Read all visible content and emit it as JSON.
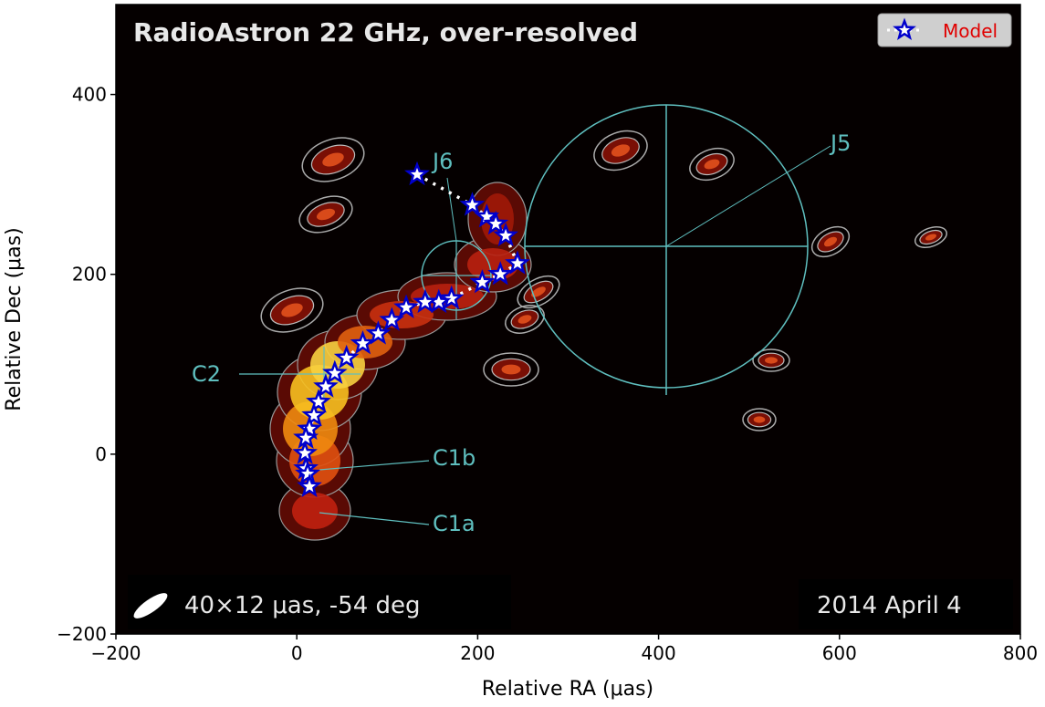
{
  "chart_data": {
    "type": "scatter",
    "title": "RadioAstron 22 GHz, over-resolved",
    "xlabel": "Relative RA (μas)",
    "ylabel": "Relative Dec (μas)",
    "xlim": [
      -200,
      800
    ],
    "ylim": [
      -200,
      500
    ],
    "xticks": [
      -200,
      0,
      200,
      400,
      600,
      800
    ],
    "yticks": [
      -200,
      0,
      200,
      400
    ],
    "xtick_labels": [
      "−200",
      "0",
      "200",
      "400",
      "600",
      "800"
    ],
    "ytick_labels": [
      "−200",
      "0",
      "200",
      "400"
    ],
    "grid": false,
    "legend": {
      "placement": "top-right",
      "entries": [
        "Model"
      ]
    },
    "series": [
      {
        "name": "Model",
        "marker": "star",
        "marker_color": "#0000cc",
        "marker_fill": "#ffffff",
        "line_style": "dotted",
        "line_color": "#ffffff",
        "x": [
          133,
          194,
          210,
          220,
          231,
          244,
          225,
          205,
          171,
          157,
          142,
          121,
          105,
          90,
          73,
          55,
          42,
          32,
          24,
          19,
          14,
          10,
          9,
          10,
          12,
          14
        ],
        "y": [
          311,
          277,
          264,
          256,
          243,
          212,
          200,
          191,
          173,
          169,
          169,
          163,
          149,
          134,
          123,
          107,
          90,
          75,
          58,
          43,
          28,
          18,
          1,
          -16,
          -22,
          -36
        ]
      }
    ],
    "annotations": {
      "components": [
        "J6",
        "J5",
        "C2",
        "C1b",
        "C1a"
      ],
      "beam": "40×12 μas, -54 deg",
      "date": "2014 April 4"
    },
    "colors": {
      "background": "#050000",
      "annotation": "#5fbfbf",
      "legend_text": "#e00000"
    }
  }
}
